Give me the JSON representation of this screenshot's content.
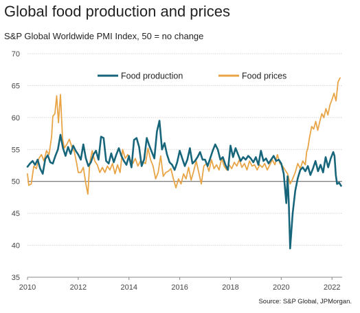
{
  "chart_data": {
    "type": "line",
    "title": "Global food production and prices",
    "subtitle": "S&P Global Worldwide PMI Index, 50 =  no change",
    "source": "Source: S&P Global, JPMorgan.",
    "xlabel": "",
    "ylabel": "",
    "xlim": [
      2010,
      2022.4
    ],
    "ylim": [
      35,
      70
    ],
    "yticks": [
      35,
      40,
      45,
      50,
      55,
      60,
      65,
      70
    ],
    "xticks": [
      2010,
      2012,
      2014,
      2016,
      2018,
      2020,
      2022
    ],
    "xtick_labels": [
      "2010",
      "2012",
      "2014",
      "2016",
      "2018",
      "2020",
      "2022"
    ],
    "ytick_labels": [
      "35",
      "40",
      "45",
      "50",
      "55",
      "60",
      "65",
      "70"
    ],
    "reference_line": 50,
    "grid": "horizontal",
    "legend_position": "top-center",
    "series": [
      {
        "name": "Food production",
        "color": "#17657a",
        "points": [
          [
            2010.0,
            52.3
          ],
          [
            2010.1,
            52.8
          ],
          [
            2010.2,
            53.2
          ],
          [
            2010.3,
            52.6
          ],
          [
            2010.4,
            53.4
          ],
          [
            2010.5,
            52.0
          ],
          [
            2010.6,
            51.2
          ],
          [
            2010.7,
            53.5
          ],
          [
            2010.8,
            54.1
          ],
          [
            2010.9,
            53.0
          ],
          [
            2011.0,
            52.8
          ],
          [
            2011.1,
            54.0
          ],
          [
            2011.2,
            55.0
          ],
          [
            2011.3,
            57.3
          ],
          [
            2011.4,
            55.2
          ],
          [
            2011.5,
            54.0
          ],
          [
            2011.6,
            55.4
          ],
          [
            2011.7,
            54.3
          ],
          [
            2011.8,
            55.6
          ],
          [
            2011.9,
            54.8
          ],
          [
            2012.0,
            54.2
          ],
          [
            2012.1,
            53.4
          ],
          [
            2012.2,
            55.8
          ],
          [
            2012.3,
            53.6
          ],
          [
            2012.4,
            52.4
          ],
          [
            2012.5,
            53.0
          ],
          [
            2012.6,
            54.2
          ],
          [
            2012.7,
            54.8
          ],
          [
            2012.8,
            53.4
          ],
          [
            2012.9,
            57.0
          ],
          [
            2013.0,
            56.8
          ],
          [
            2013.1,
            53.2
          ],
          [
            2013.2,
            52.8
          ],
          [
            2013.3,
            54.4
          ],
          [
            2013.4,
            53.0
          ],
          [
            2013.5,
            54.2
          ],
          [
            2013.6,
            55.2
          ],
          [
            2013.7,
            54.0
          ],
          [
            2013.8,
            53.2
          ],
          [
            2013.9,
            52.6
          ],
          [
            2014.0,
            54.0
          ],
          [
            2014.1,
            52.2
          ],
          [
            2014.2,
            56.5
          ],
          [
            2014.3,
            56.8
          ],
          [
            2014.4,
            55.4
          ],
          [
            2014.5,
            52.4
          ],
          [
            2014.6,
            53.5
          ],
          [
            2014.7,
            56.8
          ],
          [
            2014.8,
            55.6
          ],
          [
            2014.9,
            54.6
          ],
          [
            2015.0,
            53.6
          ],
          [
            2015.1,
            57.8
          ],
          [
            2015.2,
            59.5
          ],
          [
            2015.3,
            55.0
          ],
          [
            2015.4,
            56.0
          ],
          [
            2015.5,
            54.2
          ],
          [
            2015.6,
            53.0
          ],
          [
            2015.7,
            52.6
          ],
          [
            2015.8,
            51.8
          ],
          [
            2015.9,
            53.0
          ],
          [
            2016.0,
            54.8
          ],
          [
            2016.1,
            53.6
          ],
          [
            2016.2,
            52.4
          ],
          [
            2016.3,
            53.4
          ],
          [
            2016.4,
            55.2
          ],
          [
            2016.5,
            52.8
          ],
          [
            2016.6,
            53.2
          ],
          [
            2016.7,
            53.8
          ],
          [
            2016.8,
            54.6
          ],
          [
            2016.9,
            53.4
          ],
          [
            2017.0,
            53.4
          ],
          [
            2017.1,
            52.4
          ],
          [
            2017.2,
            53.6
          ],
          [
            2017.3,
            54.8
          ],
          [
            2017.4,
            55.8
          ],
          [
            2017.5,
            55.0
          ],
          [
            2017.6,
            53.4
          ],
          [
            2017.7,
            53.8
          ],
          [
            2017.8,
            52.6
          ],
          [
            2017.9,
            51.8
          ],
          [
            2018.0,
            55.6
          ],
          [
            2018.1,
            53.8
          ],
          [
            2018.2,
            55.2
          ],
          [
            2018.3,
            54.2
          ],
          [
            2018.4,
            53.2
          ],
          [
            2018.5,
            53.8
          ],
          [
            2018.6,
            53.4
          ],
          [
            2018.7,
            54.0
          ],
          [
            2018.8,
            53.6
          ],
          [
            2018.9,
            53.0
          ],
          [
            2019.0,
            53.8
          ],
          [
            2019.1,
            52.6
          ],
          [
            2019.2,
            54.8
          ],
          [
            2019.3,
            53.2
          ],
          [
            2019.4,
            53.6
          ],
          [
            2019.5,
            52.8
          ],
          [
            2019.6,
            53.4
          ],
          [
            2019.7,
            54.0
          ],
          [
            2019.8,
            53.2
          ],
          [
            2019.9,
            53.4
          ],
          [
            2020.0,
            52.8
          ],
          [
            2020.1,
            51.2
          ],
          [
            2020.2,
            46.6
          ],
          [
            2020.25,
            50.8
          ],
          [
            2020.3,
            46.5
          ],
          [
            2020.35,
            39.5
          ],
          [
            2020.45,
            45.0
          ],
          [
            2020.55,
            48.5
          ],
          [
            2020.65,
            50.5
          ],
          [
            2020.75,
            51.8
          ],
          [
            2020.85,
            52.2
          ],
          [
            2020.95,
            51.6
          ],
          [
            2021.05,
            52.4
          ],
          [
            2021.15,
            51.0
          ],
          [
            2021.25,
            52.0
          ],
          [
            2021.35,
            53.2
          ],
          [
            2021.45,
            51.6
          ],
          [
            2021.55,
            52.6
          ],
          [
            2021.65,
            51.4
          ],
          [
            2021.75,
            53.8
          ],
          [
            2021.85,
            52.2
          ],
          [
            2021.95,
            53.6
          ],
          [
            2022.05,
            54.6
          ],
          [
            2022.1,
            54.0
          ],
          [
            2022.15,
            51.0
          ],
          [
            2022.2,
            49.6
          ],
          [
            2022.28,
            49.8
          ],
          [
            2022.36,
            49.3
          ]
        ]
      },
      {
        "name": "Food prices",
        "color": "#e8a445",
        "points": [
          [
            2010.0,
            51.2
          ],
          [
            2010.05,
            49.4
          ],
          [
            2010.15,
            49.6
          ],
          [
            2010.25,
            52.4
          ],
          [
            2010.35,
            52.0
          ],
          [
            2010.45,
            53.6
          ],
          [
            2010.55,
            54.2
          ],
          [
            2010.65,
            53.2
          ],
          [
            2010.75,
            54.8
          ],
          [
            2010.85,
            54.2
          ],
          [
            2010.95,
            57.0
          ],
          [
            2011.0,
            60.2
          ],
          [
            2011.08,
            60.6
          ],
          [
            2011.15,
            63.4
          ],
          [
            2011.22,
            59.2
          ],
          [
            2011.3,
            63.6
          ],
          [
            2011.38,
            56.8
          ],
          [
            2011.45,
            55.2
          ],
          [
            2011.55,
            55.8
          ],
          [
            2011.65,
            56.6
          ],
          [
            2011.75,
            55.4
          ],
          [
            2011.85,
            54.6
          ],
          [
            2011.95,
            52.6
          ],
          [
            2012.0,
            51.4
          ],
          [
            2012.1,
            51.4
          ],
          [
            2012.2,
            52.2
          ],
          [
            2012.3,
            49.6
          ],
          [
            2012.38,
            48.0
          ],
          [
            2012.45,
            52.8
          ],
          [
            2012.55,
            54.8
          ],
          [
            2012.65,
            53.2
          ],
          [
            2012.75,
            52.6
          ],
          [
            2012.85,
            51.4
          ],
          [
            2012.95,
            52.2
          ],
          [
            2013.05,
            51.4
          ],
          [
            2013.15,
            52.4
          ],
          [
            2013.25,
            51.8
          ],
          [
            2013.35,
            52.8
          ],
          [
            2013.45,
            51.2
          ],
          [
            2013.55,
            52.6
          ],
          [
            2013.65,
            51.4
          ],
          [
            2013.75,
            55.0
          ],
          [
            2013.85,
            53.6
          ],
          [
            2013.95,
            54.2
          ],
          [
            2014.05,
            53.4
          ],
          [
            2014.15,
            52.8
          ],
          [
            2014.25,
            53.6
          ],
          [
            2014.35,
            52.4
          ],
          [
            2014.45,
            53.2
          ],
          [
            2014.55,
            53.0
          ],
          [
            2014.65,
            52.8
          ],
          [
            2014.75,
            55.2
          ],
          [
            2014.85,
            53.4
          ],
          [
            2014.95,
            52.4
          ],
          [
            2015.05,
            50.4
          ],
          [
            2015.15,
            51.4
          ],
          [
            2015.25,
            54.0
          ],
          [
            2015.35,
            50.8
          ],
          [
            2015.45,
            51.4
          ],
          [
            2015.55,
            51.6
          ],
          [
            2015.65,
            52.0
          ],
          [
            2015.75,
            50.4
          ],
          [
            2015.85,
            49.0
          ],
          [
            2015.95,
            50.4
          ],
          [
            2016.05,
            49.6
          ],
          [
            2016.15,
            51.2
          ],
          [
            2016.25,
            50.4
          ],
          [
            2016.35,
            52.2
          ],
          [
            2016.45,
            50.2
          ],
          [
            2016.55,
            51.6
          ],
          [
            2016.65,
            53.2
          ],
          [
            2016.75,
            51.4
          ],
          [
            2016.85,
            49.6
          ],
          [
            2016.95,
            52.4
          ],
          [
            2017.05,
            52.8
          ],
          [
            2017.15,
            51.6
          ],
          [
            2017.25,
            53.4
          ],
          [
            2017.35,
            52.0
          ],
          [
            2017.45,
            52.6
          ],
          [
            2017.55,
            51.8
          ],
          [
            2017.65,
            53.6
          ],
          [
            2017.75,
            52.4
          ],
          [
            2017.85,
            51.8
          ],
          [
            2017.95,
            52.6
          ],
          [
            2018.05,
            52.0
          ],
          [
            2018.15,
            53.0
          ],
          [
            2018.25,
            52.4
          ],
          [
            2018.35,
            53.4
          ],
          [
            2018.45,
            52.2
          ],
          [
            2018.55,
            52.8
          ],
          [
            2018.65,
            51.8
          ],
          [
            2018.75,
            53.2
          ],
          [
            2018.85,
            52.4
          ],
          [
            2018.95,
            52.6
          ],
          [
            2019.05,
            51.8
          ],
          [
            2019.15,
            52.6
          ],
          [
            2019.25,
            52.2
          ],
          [
            2019.35,
            52.8
          ],
          [
            2019.45,
            51.8
          ],
          [
            2019.55,
            52.6
          ],
          [
            2019.65,
            53.4
          ],
          [
            2019.75,
            52.6
          ],
          [
            2019.85,
            54.2
          ],
          [
            2019.95,
            52.8
          ],
          [
            2020.05,
            52.4
          ],
          [
            2020.15,
            51.8
          ],
          [
            2020.25,
            51.2
          ],
          [
            2020.35,
            49.6
          ],
          [
            2020.45,
            50.4
          ],
          [
            2020.55,
            51.4
          ],
          [
            2020.65,
            52.8
          ],
          [
            2020.75,
            52.0
          ],
          [
            2020.85,
            53.2
          ],
          [
            2020.95,
            52.6
          ],
          [
            2021.0,
            54.6
          ],
          [
            2021.05,
            55.2
          ],
          [
            2021.12,
            57.0
          ],
          [
            2021.2,
            58.6
          ],
          [
            2021.28,
            58.2
          ],
          [
            2021.36,
            59.4
          ],
          [
            2021.44,
            58.0
          ],
          [
            2021.52,
            59.4
          ],
          [
            2021.6,
            60.6
          ],
          [
            2021.68,
            60.0
          ],
          [
            2021.76,
            61.4
          ],
          [
            2021.84,
            60.4
          ],
          [
            2021.92,
            62.0
          ],
          [
            2022.0,
            62.8
          ],
          [
            2022.08,
            63.8
          ],
          [
            2022.16,
            62.6
          ],
          [
            2022.24,
            65.6
          ],
          [
            2022.32,
            66.2
          ]
        ]
      }
    ]
  }
}
